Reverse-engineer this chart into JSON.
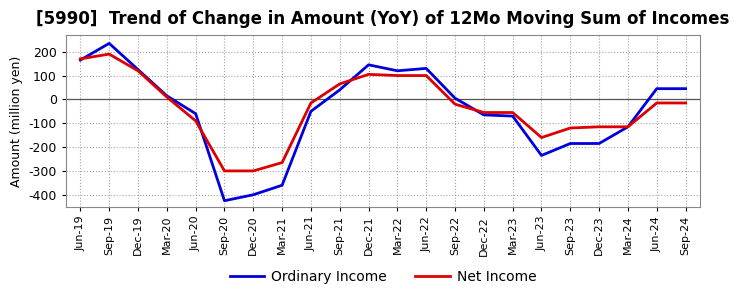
{
  "title": "[5990]  Trend of Change in Amount (YoY) of 12Mo Moving Sum of Incomes",
  "ylabel": "Amount (million yen)",
  "x_labels": [
    "Jun-19",
    "Sep-19",
    "Dec-19",
    "Mar-20",
    "Jun-20",
    "Sep-20",
    "Dec-20",
    "Mar-21",
    "Jun-21",
    "Sep-21",
    "Dec-21",
    "Mar-22",
    "Jun-22",
    "Sep-22",
    "Dec-22",
    "Mar-23",
    "Jun-23",
    "Sep-23",
    "Dec-23",
    "Mar-24",
    "Jun-24",
    "Sep-24"
  ],
  "ordinary_income": [
    165,
    235,
    125,
    15,
    -60,
    -425,
    -400,
    -360,
    -50,
    40,
    145,
    120,
    130,
    5,
    -65,
    -70,
    -235,
    -185,
    -185,
    -115,
    45,
    45
  ],
  "net_income": [
    170,
    190,
    120,
    10,
    -90,
    -300,
    -300,
    -265,
    -15,
    65,
    105,
    100,
    100,
    -20,
    -55,
    -55,
    -160,
    -120,
    -115,
    -115,
    -15,
    -15
  ],
  "ordinary_color": "#0000dd",
  "net_color": "#dd0000",
  "ylim": [
    -450,
    270
  ],
  "yticks": [
    -400,
    -300,
    -200,
    -100,
    0,
    100,
    200
  ],
  "bg_color": "#ffffff",
  "grid_color": "#999999",
  "title_fontsize": 12,
  "legend_labels": [
    "Ordinary Income",
    "Net Income"
  ]
}
